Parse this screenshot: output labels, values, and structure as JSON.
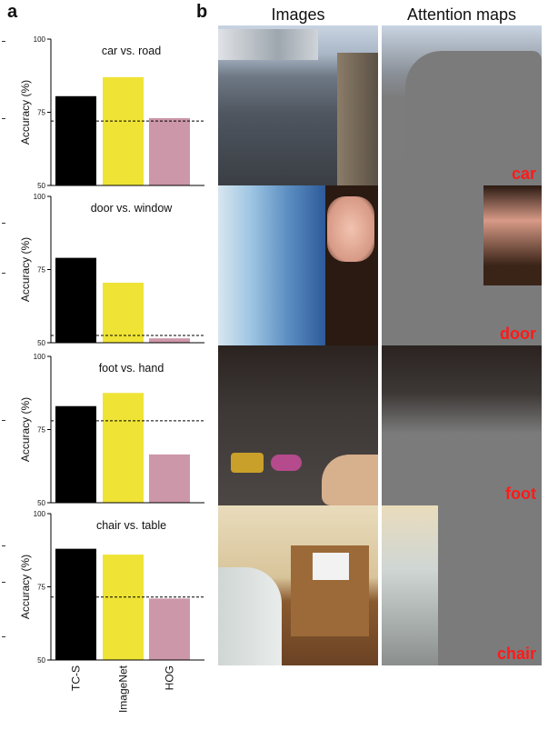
{
  "panel_a_label": "a",
  "panel_b_label": "b",
  "headers": {
    "images": "Images",
    "attention": "Attention maps"
  },
  "category_labels": [
    "car",
    "door",
    "foot",
    "chair"
  ],
  "colors": {
    "tc_s": "#000000",
    "imagenet": "#efe336",
    "hog": "#cc97a8",
    "label_red": "#ff1a1a"
  },
  "chart_data": [
    {
      "type": "bar",
      "title": "car vs. road",
      "ylabel": "Accuracy (%)",
      "categories": [
        "TC-S",
        "ImageNet",
        "HOG"
      ],
      "values": [
        80.5,
        87,
        73
      ],
      "ylim": [
        50,
        100
      ],
      "ticks": [
        50,
        75,
        100
      ],
      "chance_line": 72,
      "show_xticklabels": false
    },
    {
      "type": "bar",
      "title": "door vs. window",
      "ylabel": "Accuracy (%)",
      "categories": [
        "TC-S",
        "ImageNet",
        "HOG"
      ],
      "values": [
        79,
        70.5,
        51.5
      ],
      "ylim": [
        50,
        100
      ],
      "ticks": [
        50,
        75,
        100
      ],
      "chance_line": 52.5,
      "show_xticklabels": false
    },
    {
      "type": "bar",
      "title": "foot vs. hand",
      "ylabel": "Accuracy (%)",
      "categories": [
        "TC-S",
        "ImageNet",
        "HOG"
      ],
      "values": [
        83,
        87.5,
        66.5
      ],
      "ylim": [
        50,
        100
      ],
      "ticks": [
        50,
        75,
        100
      ],
      "chance_line": 78,
      "show_xticklabels": false
    },
    {
      "type": "bar",
      "title": "chair vs. table",
      "ylabel": "Accuracy (%)",
      "categories": [
        "TC-S",
        "ImageNet",
        "HOG"
      ],
      "values": [
        88,
        86,
        71
      ],
      "ylim": [
        50,
        100
      ],
      "ticks": [
        50,
        75,
        100
      ],
      "chance_line": 71.5,
      "show_xticklabels": true
    }
  ]
}
